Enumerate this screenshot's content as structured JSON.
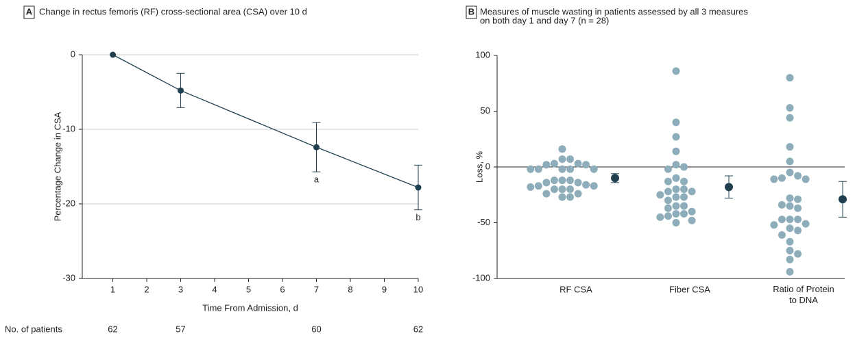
{
  "chart_data": [
    {
      "type": "line",
      "panel": "A",
      "title": "Change in rectus femoris (RF) cross-sectional area (CSA) over 10 d",
      "x_label": "Time From Admission, d",
      "y_label": "Percentage Change in CSA",
      "x": [
        1,
        3,
        7,
        10
      ],
      "values": [
        0,
        -4.8,
        -12.4,
        -17.8
      ],
      "errors": [
        null,
        2.3,
        3.3,
        3.0
      ],
      "color": "#1f3f4f",
      "xlim": [
        0.1,
        10
      ],
      "xticks": [
        1,
        2,
        3,
        4,
        5,
        6,
        7,
        8,
        9,
        10
      ],
      "ylim": [
        -30,
        0
      ],
      "yticks": [
        0,
        -10,
        -20,
        -30
      ],
      "grid": true,
      "annotations": [
        {
          "x": 7,
          "text": "a"
        },
        {
          "x": 10,
          "text": "b"
        }
      ],
      "patients": {
        "label": "No. of patients",
        "x": [
          1,
          3,
          7,
          10
        ],
        "values": [
          62,
          57,
          60,
          62
        ]
      }
    },
    {
      "type": "strip",
      "panel": "B",
      "title": [
        "Measures of muscle wasting in patients assessed by all 3 measures",
        "on both day 1 and day 7 (n = 28)"
      ],
      "y_label": "Loss, %",
      "categories": [
        "RF CSA",
        "Fiber CSA",
        "Ratio of Protein to DNA"
      ],
      "points": [
        [
          16,
          7,
          7,
          3,
          3,
          2,
          2,
          -2,
          -2,
          -2,
          -2,
          -2,
          -12,
          -12,
          -12,
          -14,
          -14,
          -16,
          -17,
          -18,
          -17,
          -20,
          -20,
          -20,
          -24,
          -24,
          -27,
          -27
        ],
        [
          86,
          40,
          27,
          14,
          2,
          0,
          -2,
          -10,
          -13,
          -13,
          -20,
          -20,
          -22,
          -22,
          -25,
          -27,
          -27,
          -30,
          -35,
          -35,
          -37,
          -40,
          -42,
          -42,
          -44,
          -45,
          -48,
          -50
        ],
        [
          80,
          53,
          44,
          18,
          5,
          -5,
          -8,
          -10,
          -11,
          -11,
          -28,
          -29,
          -34,
          -35,
          -37,
          -47,
          -47,
          -47,
          -51,
          -52,
          -55,
          -57,
          -61,
          -67,
          -75,
          -78,
          -83,
          -94
        ]
      ],
      "means": [
        -10,
        -18,
        -29
      ],
      "errors": [
        4,
        10,
        16
      ],
      "point_color": "#8eadba",
      "color": "#1f3f4f",
      "ylim": [
        -100,
        100
      ],
      "yticks": [
        -100,
        -50,
        0,
        50,
        100
      ],
      "hline": 0
    }
  ]
}
